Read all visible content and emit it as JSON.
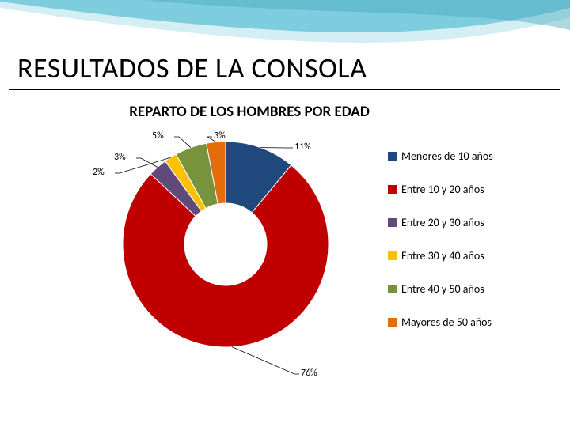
{
  "slide": {
    "title": "RESULTADOS DE LA CONSOLA",
    "swoosh_colors": [
      "#6fc7d9",
      "#b7e4ed",
      "#4aa8bc"
    ]
  },
  "chart": {
    "type": "donut",
    "title": "REPARTO DE LOS HOMBRES POR EDAD",
    "inner_radius_pct": 40,
    "outer_radius_pct": 100,
    "background_color": "#ffffff",
    "slice_border_color": "#ffffff",
    "slice_border_width": 1,
    "series": [
      {
        "label": "Menores de 10 años",
        "value": 11,
        "color": "#1f497d",
        "display": "11%"
      },
      {
        "label": "Entre 10 y 20 años",
        "value": 76,
        "color": "#c00000",
        "display": "76%"
      },
      {
        "label": "Entre 20 y 30 años",
        "value": 3,
        "color": "#604a7b",
        "display": "3%"
      },
      {
        "label": "Entre 30 y 40 años",
        "value": 2,
        "color": "#ffc000",
        "display": "2%"
      },
      {
        "label": "Entre 40 y 50 años",
        "value": 5,
        "color": "#77933c",
        "display": "5%"
      },
      {
        "label": "Mayores de 50 años",
        "value": 3,
        "color": "#e46c0a",
        "display": "3%"
      }
    ],
    "legend": {
      "position": "right",
      "fontsize": 14,
      "marker_size": 11
    },
    "label_fontsize": 12
  }
}
